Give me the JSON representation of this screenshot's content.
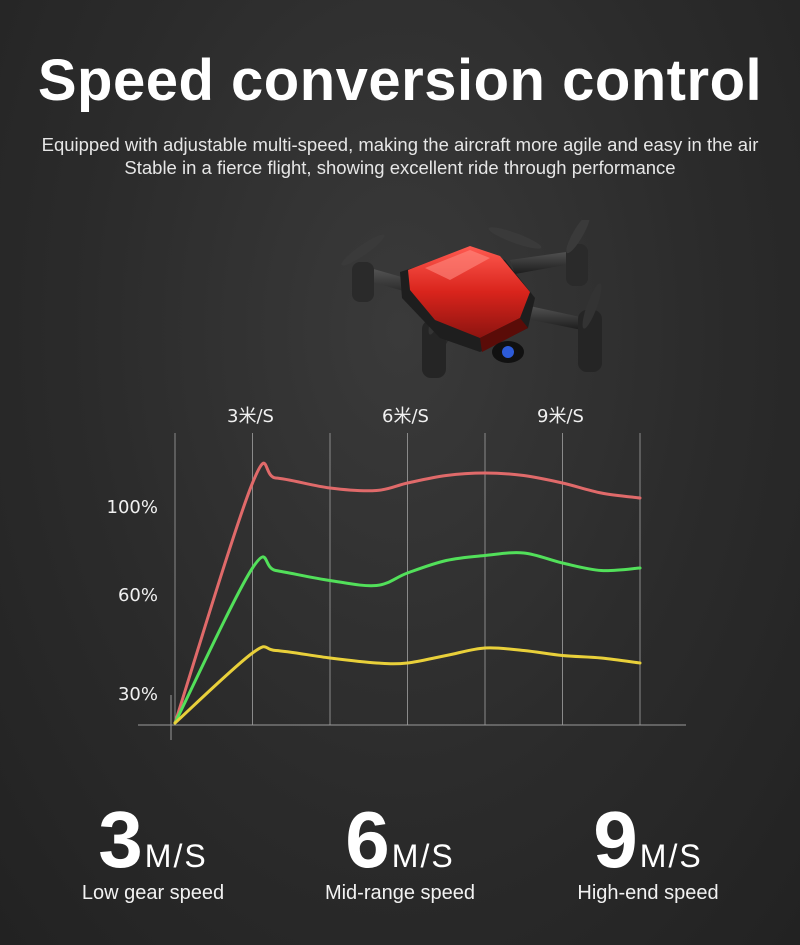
{
  "header": {
    "title": "Speed conversion control",
    "subtitle_line1": "Equipped with adjustable multi-speed, making the aircraft more agile and easy in the air",
    "subtitle_line2": "Stable in a fierce flight, showing excellent ride through performance"
  },
  "chart_data": {
    "type": "line",
    "title": "",
    "xlabel": "",
    "ylabel": "",
    "x_tick_labels": [
      "3米/S",
      "6米/S",
      "9米/S"
    ],
    "y_tick_labels": [
      "100%",
      "60%",
      "30%"
    ],
    "grid": "vertical",
    "x": [
      0,
      1,
      1.3,
      2,
      2.6,
      3,
      3.5,
      4,
      4.5,
      5,
      5.5,
      6
    ],
    "series": [
      {
        "color": "#e06a6a",
        "values": [
          0,
          96,
          98,
          94,
          93,
          96,
          99,
          100,
          99,
          96,
          92,
          90
        ]
      },
      {
        "color": "#52e05a",
        "values": [
          0,
          62,
          61,
          57,
          55,
          60,
          65,
          67,
          68,
          64,
          61,
          62
        ]
      },
      {
        "color": "#e9d03a",
        "values": [
          0,
          28,
          29,
          26,
          24,
          24,
          27,
          30,
          29,
          27,
          26,
          24
        ]
      }
    ]
  },
  "speeds": [
    {
      "number": "3",
      "unit": "M/S",
      "label": "Low gear speed"
    },
    {
      "number": "6",
      "unit": "M/S",
      "label": "Mid-range speed"
    },
    {
      "number": "9",
      "unit": "M/S",
      "label": "High-end speed"
    }
  ],
  "colors": {
    "background": "#2b2b2b",
    "drone_body": "#d9241c"
  },
  "icons": {
    "product": "drone-image"
  }
}
